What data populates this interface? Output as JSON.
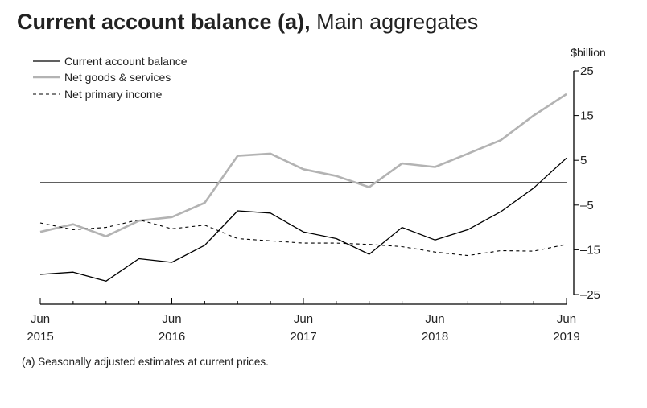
{
  "title": {
    "bold": "Current account balance (a),",
    "normal": "Main aggregates"
  },
  "footnote": "(a) Seasonally adjusted estimates at current prices.",
  "chart_data": {
    "type": "line",
    "unit_label": "$billion",
    "x_labels": [
      {
        "month": "Jun",
        "year": "2015"
      },
      {
        "month": "Jun",
        "year": "2016"
      },
      {
        "month": "Jun",
        "year": "2017"
      },
      {
        "month": "Jun",
        "year": "2018"
      },
      {
        "month": "Jun",
        "year": "2019"
      }
    ],
    "x": [
      "Jun 2015",
      "Sep 2015",
      "Dec 2015",
      "Mar 2016",
      "Jun 2016",
      "Sep 2016",
      "Dec 2016",
      "Mar 2017",
      "Jun 2017",
      "Sep 2017",
      "Dec 2017",
      "Mar 2018",
      "Jun 2018",
      "Sep 2018",
      "Dec 2018",
      "Mar 2019",
      "Jun 2019"
    ],
    "ylim": [
      -25,
      25
    ],
    "y_ticks": [
      25,
      15,
      5,
      -5,
      -15,
      -25
    ],
    "y_tick_labels": [
      "25",
      "15",
      "5",
      "–5",
      "–15",
      "–25"
    ],
    "zero_line": true,
    "legend_position": "top-left",
    "series": [
      {
        "name": "Current account balance",
        "style": "solid-black",
        "color": "#000000",
        "values": [
          -20.5,
          -20,
          -22,
          -17,
          -17.8,
          -14,
          -6.3,
          -6.8,
          -11,
          -12.5,
          -16,
          -10,
          -12.8,
          -10.5,
          -6.5,
          -1.2,
          5.5
        ]
      },
      {
        "name": "Net goods & services",
        "style": "solid-grey",
        "color": "#b3b3b3",
        "values": [
          -11,
          -9.3,
          -12,
          -8.5,
          -7.7,
          -4.5,
          6,
          6.5,
          3,
          1.5,
          -1,
          4.3,
          3.5,
          6.5,
          9.5,
          15,
          19.8
        ]
      },
      {
        "name": "Net primary income",
        "style": "dashed-black",
        "color": "#000000",
        "values": [
          -9,
          -10.5,
          -10,
          -8.3,
          -10.3,
          -9.5,
          -12.5,
          -13,
          -13.5,
          -13.5,
          -13.8,
          -14.3,
          -15.5,
          -16.3,
          -15.2,
          -15.3,
          -13.8
        ]
      }
    ]
  }
}
